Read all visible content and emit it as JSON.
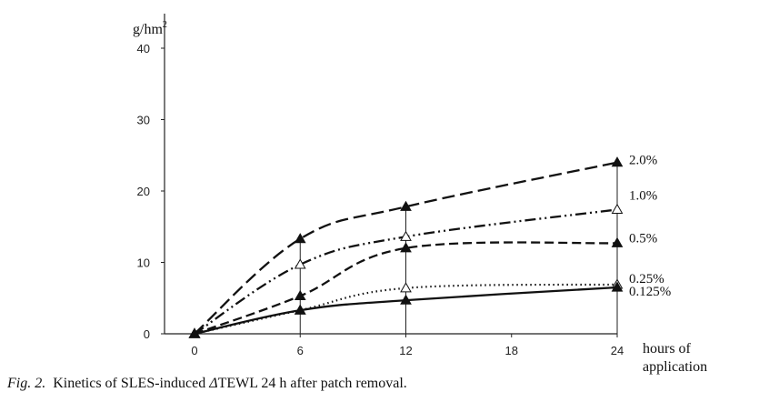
{
  "chart_data": {
    "type": "line",
    "ylabel": "g/hm",
    "ylabel_sup": "2",
    "xlabel_line1": "hours of",
    "xlabel_line2": "application",
    "x": [
      0,
      6,
      12,
      24
    ],
    "xticks": [
      "0",
      "6",
      "12",
      "18",
      "24"
    ],
    "yticks": [
      "0",
      "10",
      "20",
      "30",
      "40"
    ],
    "xlim": [
      0,
      24
    ],
    "ylim": [
      0,
      45
    ],
    "grid": false,
    "series": [
      {
        "name": "2.0%",
        "values": [
          0,
          13.3,
          17.8,
          24.0
        ],
        "marker": "filled-triangle",
        "dash": "long-dash"
      },
      {
        "name": "1.0%",
        "values": [
          0,
          9.7,
          13.6,
          17.4
        ],
        "marker": "open-triangle",
        "dash": "dash-dot-dot"
      },
      {
        "name": "0.5%",
        "values": [
          0,
          5.3,
          12.0,
          12.7
        ],
        "marker": "filled-triangle",
        "dash": "dash"
      },
      {
        "name": "0.25%",
        "values": [
          0,
          3.3,
          6.4,
          6.9
        ],
        "marker": "open-triangle",
        "dash": "dotted"
      },
      {
        "name": "0.125%",
        "values": [
          0,
          3.3,
          4.7,
          6.5
        ],
        "marker": "filled-triangle",
        "dash": "solid"
      }
    ]
  },
  "caption": {
    "label": "Fig. 2.",
    "text": "Kinetics of SLES-induced ",
    "delta": "Δ",
    "tail": "TEWL 24 h after patch removal."
  }
}
